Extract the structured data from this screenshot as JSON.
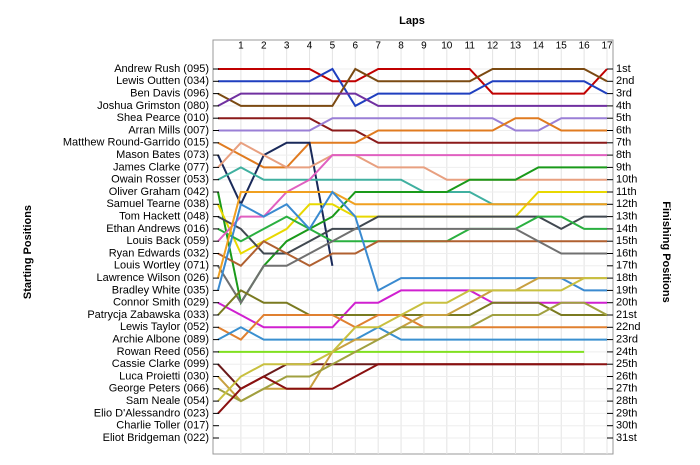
{
  "chart_data": {
    "type": "line",
    "title": "Laps",
    "y_label": "Starting Positions",
    "y2_label": "Finishing Positions",
    "x": [
      0,
      1,
      2,
      3,
      4,
      5,
      6,
      7,
      8,
      9,
      10,
      11,
      12,
      13,
      14,
      15,
      16,
      17
    ],
    "xlim": [
      0,
      17
    ],
    "xticks": [
      1,
      2,
      3,
      4,
      5,
      6,
      7,
      8,
      9,
      10,
      11,
      12,
      13,
      14,
      15,
      16,
      17
    ],
    "ylim": [
      31,
      1
    ],
    "yticks": [
      {
        "value": 1,
        "label": "1st"
      },
      {
        "value": 2,
        "label": "2nd"
      },
      {
        "value": 3,
        "label": "3rd"
      },
      {
        "value": 4,
        "label": "4th"
      },
      {
        "value": 5,
        "label": "5th"
      },
      {
        "value": 6,
        "label": "6th"
      },
      {
        "value": 7,
        "label": "7th"
      },
      {
        "value": 8,
        "label": "8th"
      },
      {
        "value": 9,
        "label": "9th"
      },
      {
        "value": 10,
        "label": "10th"
      },
      {
        "value": 11,
        "label": "11th"
      },
      {
        "value": 12,
        "label": "12th"
      },
      {
        "value": 13,
        "label": "13th"
      },
      {
        "value": 14,
        "label": "14th"
      },
      {
        "value": 15,
        "label": "15th"
      },
      {
        "value": 16,
        "label": "16th"
      },
      {
        "value": 17,
        "label": "17th"
      },
      {
        "value": 18,
        "label": "18th"
      },
      {
        "value": 19,
        "label": "19th"
      },
      {
        "value": 20,
        "label": "20th"
      },
      {
        "value": 21,
        "label": "21st"
      },
      {
        "value": 22,
        "label": "22nd"
      },
      {
        "value": 23,
        "label": "23rd"
      },
      {
        "value": 24,
        "label": "24th"
      },
      {
        "value": 25,
        "label": "25th"
      },
      {
        "value": 26,
        "label": "26th"
      },
      {
        "value": 27,
        "label": "27th"
      },
      {
        "value": 28,
        "label": "28th"
      },
      {
        "value": 29,
        "label": "29th"
      },
      {
        "value": 30,
        "label": "30th"
      },
      {
        "value": 31,
        "label": "31st"
      }
    ],
    "grid": true,
    "series": [
      {
        "name": "Andrew Rush (095)",
        "color": "#c00000",
        "values": [
          1,
          1,
          1,
          1,
          1,
          2,
          2,
          1,
          1,
          1,
          1,
          1,
          3,
          3,
          3,
          3,
          3,
          1
        ]
      },
      {
        "name": "Lewis Outten (034)",
        "color": "#1f3fbf",
        "values": [
          2,
          2,
          2,
          2,
          2,
          1,
          4,
          3,
          3,
          3,
          3,
          3,
          2,
          2,
          2,
          2,
          2,
          3
        ]
      },
      {
        "name": "Ben Davis (096)",
        "color": "#7b4a12",
        "values": [
          3,
          4,
          4,
          4,
          4,
          4,
          1,
          2,
          2,
          2,
          2,
          2,
          1,
          1,
          1,
          1,
          1,
          2
        ]
      },
      {
        "name": "Joshua Grimston (080)",
        "color": "#7030a0",
        "values": [
          4,
          3,
          3,
          3,
          3,
          3,
          3,
          4,
          4,
          4,
          4,
          4,
          4,
          4,
          4,
          4,
          4,
          4
        ]
      },
      {
        "name": "Shea Pearce (010)",
        "color": "#8b1a1a",
        "values": [
          5,
          5,
          5,
          5,
          5,
          6,
          6,
          7,
          7,
          7,
          7,
          7,
          7,
          7,
          7,
          7,
          7,
          7
        ]
      },
      {
        "name": "Arran Mills (007)",
        "color": "#9a7fd6",
        "values": [
          6,
          6,
          6,
          6,
          6,
          5,
          5,
          5,
          5,
          5,
          5,
          5,
          5,
          6,
          6,
          5,
          5,
          5
        ]
      },
      {
        "name": "Matthew Round-Garrido (015)",
        "color": "#e07b20",
        "values": [
          7,
          8,
          9,
          9,
          7,
          7,
          7,
          6,
          6,
          6,
          6,
          6,
          6,
          5,
          5,
          6,
          6,
          6
        ]
      },
      {
        "name": "Mason Bates (073)",
        "color": "#1a2a5a",
        "values": [
          8,
          12,
          8,
          7,
          7,
          17,
          null,
          null,
          null,
          null,
          null,
          null,
          null,
          null,
          null,
          null,
          null,
          null
        ]
      },
      {
        "name": "James Clarke (077)",
        "color": "#e8a080",
        "values": [
          9,
          7,
          8,
          9,
          9,
          8,
          8,
          9,
          9,
          9,
          10,
          10,
          10,
          10,
          10,
          10,
          10,
          10
        ]
      },
      {
        "name": "Owain Rosser (053)",
        "color": "#40b0a0",
        "values": [
          10,
          9,
          10,
          10,
          10,
          10,
          10,
          10,
          10,
          11,
          11,
          11,
          12,
          12,
          12,
          12,
          12,
          12
        ]
      },
      {
        "name": "Oliver Graham (042)",
        "color": "#1a9a1a",
        "values": [
          11,
          20,
          17,
          15,
          14,
          13,
          11,
          11,
          11,
          11,
          11,
          10,
          10,
          10,
          9,
          9,
          9,
          9
        ]
      },
      {
        "name": "Samuel Tearne (038)",
        "color": "#e8d800",
        "values": [
          12,
          16,
          15,
          14,
          12,
          12,
          13,
          13,
          13,
          13,
          13,
          13,
          13,
          13,
          11,
          11,
          11,
          11
        ]
      },
      {
        "name": "Tom Hackett (048)",
        "color": "#404850",
        "values": [
          13,
          14,
          16,
          16,
          15,
          14,
          14,
          13,
          13,
          13,
          13,
          13,
          13,
          13,
          13,
          14,
          13,
          13
        ]
      },
      {
        "name": "Ethan Andrews (016)",
        "color": "#2ab040",
        "values": [
          14,
          15,
          14,
          13,
          14,
          15,
          15,
          15,
          15,
          15,
          15,
          14,
          14,
          14,
          13,
          13,
          14,
          14
        ]
      },
      {
        "name": "Louis Back (059)",
        "color": "#e060c0",
        "values": [
          15,
          13,
          13,
          11,
          10,
          8,
          8,
          8,
          8,
          8,
          8,
          8,
          8,
          8,
          8,
          8,
          8,
          8
        ]
      },
      {
        "name": "Ryan Edwards (032)",
        "color": "#b06030",
        "values": [
          16,
          17,
          15,
          16,
          17,
          16,
          16,
          15,
          15,
          15,
          15,
          15,
          15,
          15,
          15,
          15,
          15,
          15
        ]
      },
      {
        "name": "Louis Wortley (071)",
        "color": "#707070",
        "values": [
          17,
          20,
          17,
          17,
          16,
          15,
          14,
          14,
          14,
          14,
          14,
          14,
          14,
          14,
          15,
          16,
          16,
          16
        ]
      },
      {
        "name": "Lawrence Wilson (026)",
        "color": "#f0a020",
        "values": [
          18,
          11,
          11,
          11,
          11,
          11,
          12,
          12,
          12,
          12,
          12,
          12,
          12,
          12,
          12,
          12,
          12,
          12
        ]
      },
      {
        "name": "Bradley White (035)",
        "color": "#3a8ad0",
        "values": [
          19,
          12,
          13,
          12,
          14,
          11,
          13,
          19,
          18,
          18,
          18,
          18,
          18,
          18,
          18,
          18,
          19,
          19
        ]
      },
      {
        "name": "Connor Smith (029)",
        "color": "#d020d0",
        "values": [
          20,
          21,
          22,
          22,
          22,
          22,
          20,
          20,
          19,
          19,
          19,
          19,
          20,
          20,
          20,
          20,
          20,
          20
        ]
      },
      {
        "name": "Patrycja Zabawska (033)",
        "color": "#7a7a20",
        "values": [
          21,
          19,
          20,
          20,
          21,
          21,
          21,
          21,
          21,
          21,
          21,
          21,
          20,
          20,
          20,
          21,
          21,
          21
        ]
      },
      {
        "name": "Lewis Taylor (052)",
        "color": "#e08030",
        "values": [
          22,
          23,
          21,
          21,
          21,
          21,
          22,
          21,
          21,
          22,
          22,
          22,
          22,
          22,
          22,
          22,
          22,
          22
        ]
      },
      {
        "name": "Archie Albone (089)",
        "color": "#3a90d0",
        "values": [
          23,
          22,
          23,
          23,
          23,
          23,
          23,
          22,
          23,
          23,
          23,
          23,
          23,
          23,
          23,
          23,
          23,
          23
        ]
      },
      {
        "name": "Rowan Reed (056)",
        "color": "#80e020",
        "values": [
          24,
          24,
          24,
          24,
          24,
          24,
          24,
          24,
          24,
          24,
          24,
          24,
          24,
          24,
          24,
          24,
          24,
          null
        ]
      },
      {
        "name": "Cassie Clarke (099)",
        "color": "#6b1a1a",
        "values": [
          25,
          27,
          26,
          25,
          25,
          25,
          25,
          25,
          25,
          25,
          25,
          25,
          25,
          25,
          25,
          25,
          25,
          null
        ]
      },
      {
        "name": "Luca Proietti (030)",
        "color": "#c8a040",
        "values": [
          26,
          28,
          27,
          27,
          27,
          24,
          23,
          23,
          22,
          21,
          21,
          20,
          19,
          19,
          18,
          18,
          18,
          18
        ]
      },
      {
        "name": "George Peters (066)",
        "color": "#a0a040",
        "values": [
          27,
          28,
          27,
          26,
          26,
          25,
          24,
          23,
          22,
          22,
          22,
          22,
          21,
          21,
          21,
          20,
          20,
          21
        ]
      },
      {
        "name": "Sam Neale (054)",
        "color": "#c8c040",
        "values": [
          28,
          26,
          25,
          25,
          25,
          24,
          22,
          22,
          21,
          20,
          20,
          19,
          19,
          19,
          19,
          19,
          18,
          18
        ]
      },
      {
        "name": "Elio D'Alessandro (023)",
        "color": "#8a1010",
        "values": [
          29,
          27,
          26,
          27,
          27,
          27,
          26,
          25,
          25,
          25,
          25,
          25,
          25,
          25,
          25,
          25,
          25,
          25
        ]
      },
      {
        "name": "Charlie Toller (017)",
        "color": "#808080",
        "values": [
          30,
          null,
          null,
          null,
          null,
          null,
          null,
          null,
          null,
          null,
          null,
          null,
          null,
          null,
          null,
          null,
          null,
          null
        ]
      },
      {
        "name": "Eliot Bridgeman (022)",
        "color": "#808080",
        "values": [
          31,
          null,
          null,
          null,
          null,
          null,
          null,
          null,
          null,
          null,
          null,
          null,
          null,
          null,
          null,
          null,
          null,
          null
        ]
      }
    ]
  }
}
